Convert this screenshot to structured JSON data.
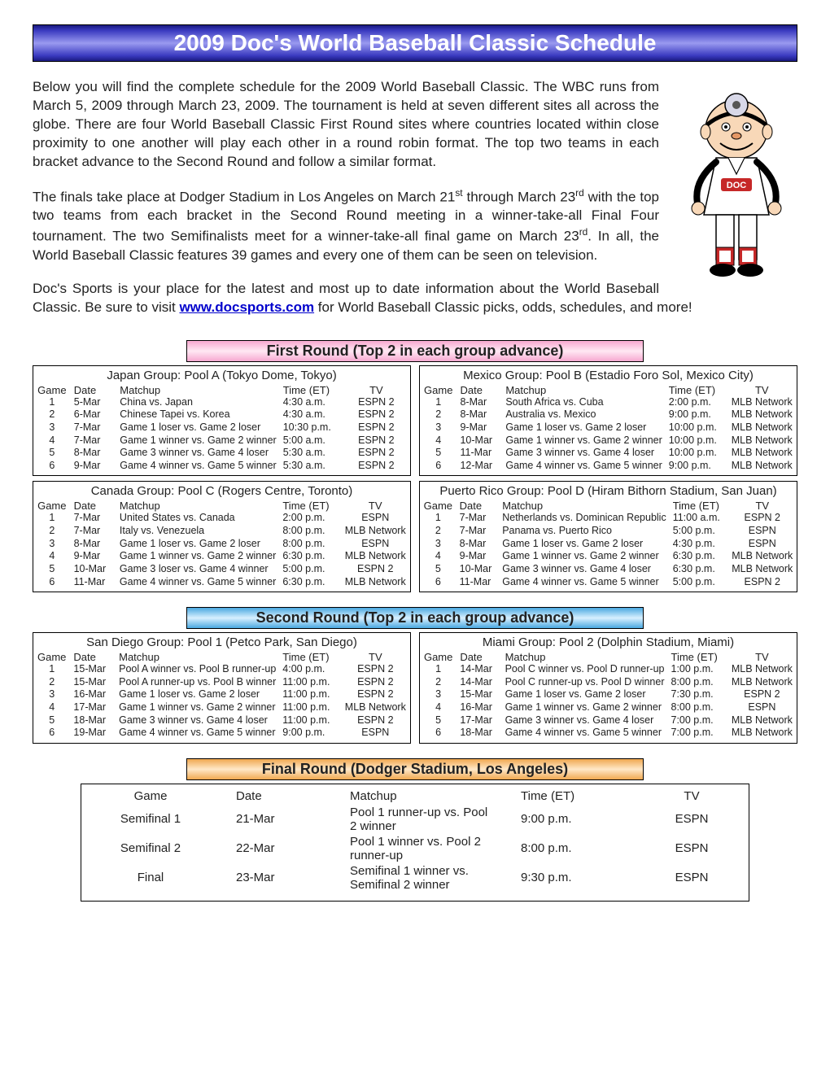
{
  "title": "2009 Doc's World Baseball Classic Schedule",
  "intro": {
    "p1": "Below you will find the complete schedule for the 2009 World Baseball Classic. The WBC runs from March 5, 2009 through March 23, 2009. The tournament is held at seven different sites all across the globe. There are four World Baseball Classic First Round sites where countries located within close proximity to one another will play each other in a round robin format. The top two teams in each bracket advance to the Second Round and follow a similar format.",
    "p2a": "The finals take place at Dodger Stadium in Los Angeles on March 21",
    "p2b": " through March 23",
    "p2c": " with the top two teams from each bracket in the Second Round meeting in a winner-take-all Final Four tournament. The two Semifinalists meet for a winner-take-all final game on March 23",
    "p2d": ". In all, the World Baseball Classic features 39 games and every one of them can be seen on television.",
    "p3a": "Doc's Sports is your place for the latest and most up to date information about the World Baseball Classic. Be sure to visit ",
    "link": "www.docsports.com",
    "p3b": " for World Baseball Classic picks, odds, schedules, and more!"
  },
  "headers": {
    "game": "Game",
    "date": "Date",
    "matchup": "Matchup",
    "time": "Time (ET)",
    "tv": "TV"
  },
  "round1": {
    "label": "First Round  (Top 2 in each group advance)",
    "groups": [
      {
        "title": "Japan Group: Pool A (Tokyo Dome, Tokyo)",
        "rows": [
          [
            "1",
            "5-Mar",
            "China vs. Japan",
            "4:30 a.m.",
            "ESPN 2"
          ],
          [
            "2",
            "6-Mar",
            "Chinese Tapei vs. Korea",
            "4:30 a.m.",
            "ESPN 2"
          ],
          [
            "3",
            "7-Mar",
            "Game 1 loser vs. Game 2 loser",
            "10:30 p.m.",
            "ESPN 2"
          ],
          [
            "4",
            "7-Mar",
            "Game 1 winner vs. Game 2 winner",
            "5:00 a.m.",
            "ESPN 2"
          ],
          [
            "5",
            "8-Mar",
            "Game 3 winner vs. Game 4 loser",
            "5:30 a.m.",
            "ESPN 2"
          ],
          [
            "6",
            "9-Mar",
            "Game 4 winner vs. Game 5 winner",
            "5:30 a.m.",
            "ESPN 2"
          ]
        ]
      },
      {
        "title": "Mexico Group: Pool B (Estadio Foro Sol, Mexico City)",
        "rows": [
          [
            "1",
            "8-Mar",
            "South Africa vs. Cuba",
            "2:00 p.m.",
            "MLB Network"
          ],
          [
            "2",
            "8-Mar",
            "Australia vs. Mexico",
            "9:00 p.m.",
            "MLB Network"
          ],
          [
            "3",
            "9-Mar",
            "Game 1 loser vs. Game 2 loser",
            "10:00 p.m.",
            "MLB Network"
          ],
          [
            "4",
            "10-Mar",
            "Game 1 winner vs. Game 2 winner",
            "10:00 p.m.",
            "MLB Network"
          ],
          [
            "5",
            "11-Mar",
            "Game 3 winner vs. Game 4 loser",
            "10:00 p.m.",
            "MLB Network"
          ],
          [
            "6",
            "12-Mar",
            "Game 4 winner vs. Game 5 winner",
            "9:00 p.m.",
            "MLB Network"
          ]
        ]
      },
      {
        "title": "Canada Group: Pool C (Rogers Centre, Toronto)",
        "rows": [
          [
            "1",
            "7-Mar",
            "United States vs. Canada",
            "2:00 p.m.",
            "ESPN"
          ],
          [
            "2",
            "7-Mar",
            "Italy vs. Venezuela",
            "8:00 p.m.",
            "MLB Network"
          ],
          [
            "3",
            "8-Mar",
            "Game 1 loser vs. Game 2 loser",
            "8:00 p.m.",
            "ESPN"
          ],
          [
            "4",
            "9-Mar",
            "Game 1 winner vs. Game 2 winner",
            "6:30 p.m.",
            "MLB Network"
          ],
          [
            "5",
            "10-Mar",
            "Game 3 loser vs. Game 4 winner",
            "5:00 p.m.",
            "ESPN 2"
          ],
          [
            "6",
            "11-Mar",
            "Game 4 winner vs. Game 5 winner",
            "6:30 p.m.",
            "MLB Network"
          ]
        ]
      },
      {
        "title": "Puerto Rico Group: Pool D (Hiram Bithorn Stadium, San Juan)",
        "rows": [
          [
            "1",
            "7-Mar",
            "Netherlands vs. Dominican Republic",
            "11:00 a.m.",
            "ESPN 2"
          ],
          [
            "2",
            "7-Mar",
            "Panama vs. Puerto Rico",
            "5:00 p.m.",
            "ESPN"
          ],
          [
            "3",
            "8-Mar",
            "Game 1 loser vs. Game 2 loser",
            "4:30 p.m.",
            "ESPN"
          ],
          [
            "4",
            "9-Mar",
            "Game 1 winner vs. Game 2 winner",
            "6:30 p.m.",
            "MLB Network"
          ],
          [
            "5",
            "10-Mar",
            "Game 3 winner vs. Game 4 loser",
            "6:30 p.m.",
            "MLB Network"
          ],
          [
            "6",
            "11-Mar",
            "Game 4 winner vs. Game 5 winner",
            "5:00 p.m.",
            "ESPN 2"
          ]
        ]
      }
    ]
  },
  "round2": {
    "label": "Second Round  (Top 2 in each group advance)",
    "groups": [
      {
        "title": "San Diego Group: Pool 1 (Petco Park, San Diego)",
        "rows": [
          [
            "1",
            "15-Mar",
            "Pool A winner vs. Pool B runner-up",
            "4:00 p.m.",
            "ESPN 2"
          ],
          [
            "2",
            "15-Mar",
            "Pool A runner-up vs. Pool B winner",
            "11:00 p.m.",
            "ESPN 2"
          ],
          [
            "3",
            "16-Mar",
            "Game 1 loser vs. Game 2 loser",
            "11:00 p.m.",
            "ESPN 2"
          ],
          [
            "4",
            "17-Mar",
            "Game 1 winner vs. Game 2 winner",
            "11:00 p.m.",
            "MLB Network"
          ],
          [
            "5",
            "18-Mar",
            "Game 3 winner vs. Game 4 loser",
            "11:00 p.m.",
            "ESPN 2"
          ],
          [
            "6",
            "19-Mar",
            "Game 4 winner vs. Game 5 winner",
            "9:00 p.m.",
            "ESPN"
          ]
        ]
      },
      {
        "title": "Miami Group: Pool 2 (Dolphin Stadium, Miami)",
        "rows": [
          [
            "1",
            "14-Mar",
            "Pool C winner vs. Pool D runner-up",
            "1:00 p.m.",
            "MLB Network"
          ],
          [
            "2",
            "14-Mar",
            "Pool C runner-up vs. Pool D winner",
            "8:00 p.m.",
            "MLB Network"
          ],
          [
            "3",
            "15-Mar",
            "Game 1 loser vs. Game 2 loser",
            "7:30 p.m.",
            "ESPN 2"
          ],
          [
            "4",
            "16-Mar",
            "Game 1 winner vs. Game 2 winner",
            "8:00 p.m.",
            "ESPN"
          ],
          [
            "5",
            "17-Mar",
            "Game 3 winner vs. Game 4 loser",
            "7:00 p.m.",
            "MLB Network"
          ],
          [
            "6",
            "18-Mar",
            "Game 4 winner vs. Game 5 winner",
            "7:00 p.m.",
            "MLB Network"
          ]
        ]
      }
    ]
  },
  "final": {
    "label": "Final Round  (Dodger Stadium, Los Angeles)",
    "rows": [
      [
        "Semifinal 1",
        "21-Mar",
        "Pool 1 runner-up vs. Pool 2 winner",
        "9:00 p.m.",
        "ESPN"
      ],
      [
        "Semifinal 2",
        "22-Mar",
        "Pool 1 winner vs. Pool 2 runner-up",
        "8:00 p.m.",
        "ESPN"
      ],
      [
        "Final",
        "23-Mar",
        "Semifinal 1 winner vs. Semifinal 2 winner",
        "9:30 p.m.",
        "ESPN"
      ]
    ]
  }
}
